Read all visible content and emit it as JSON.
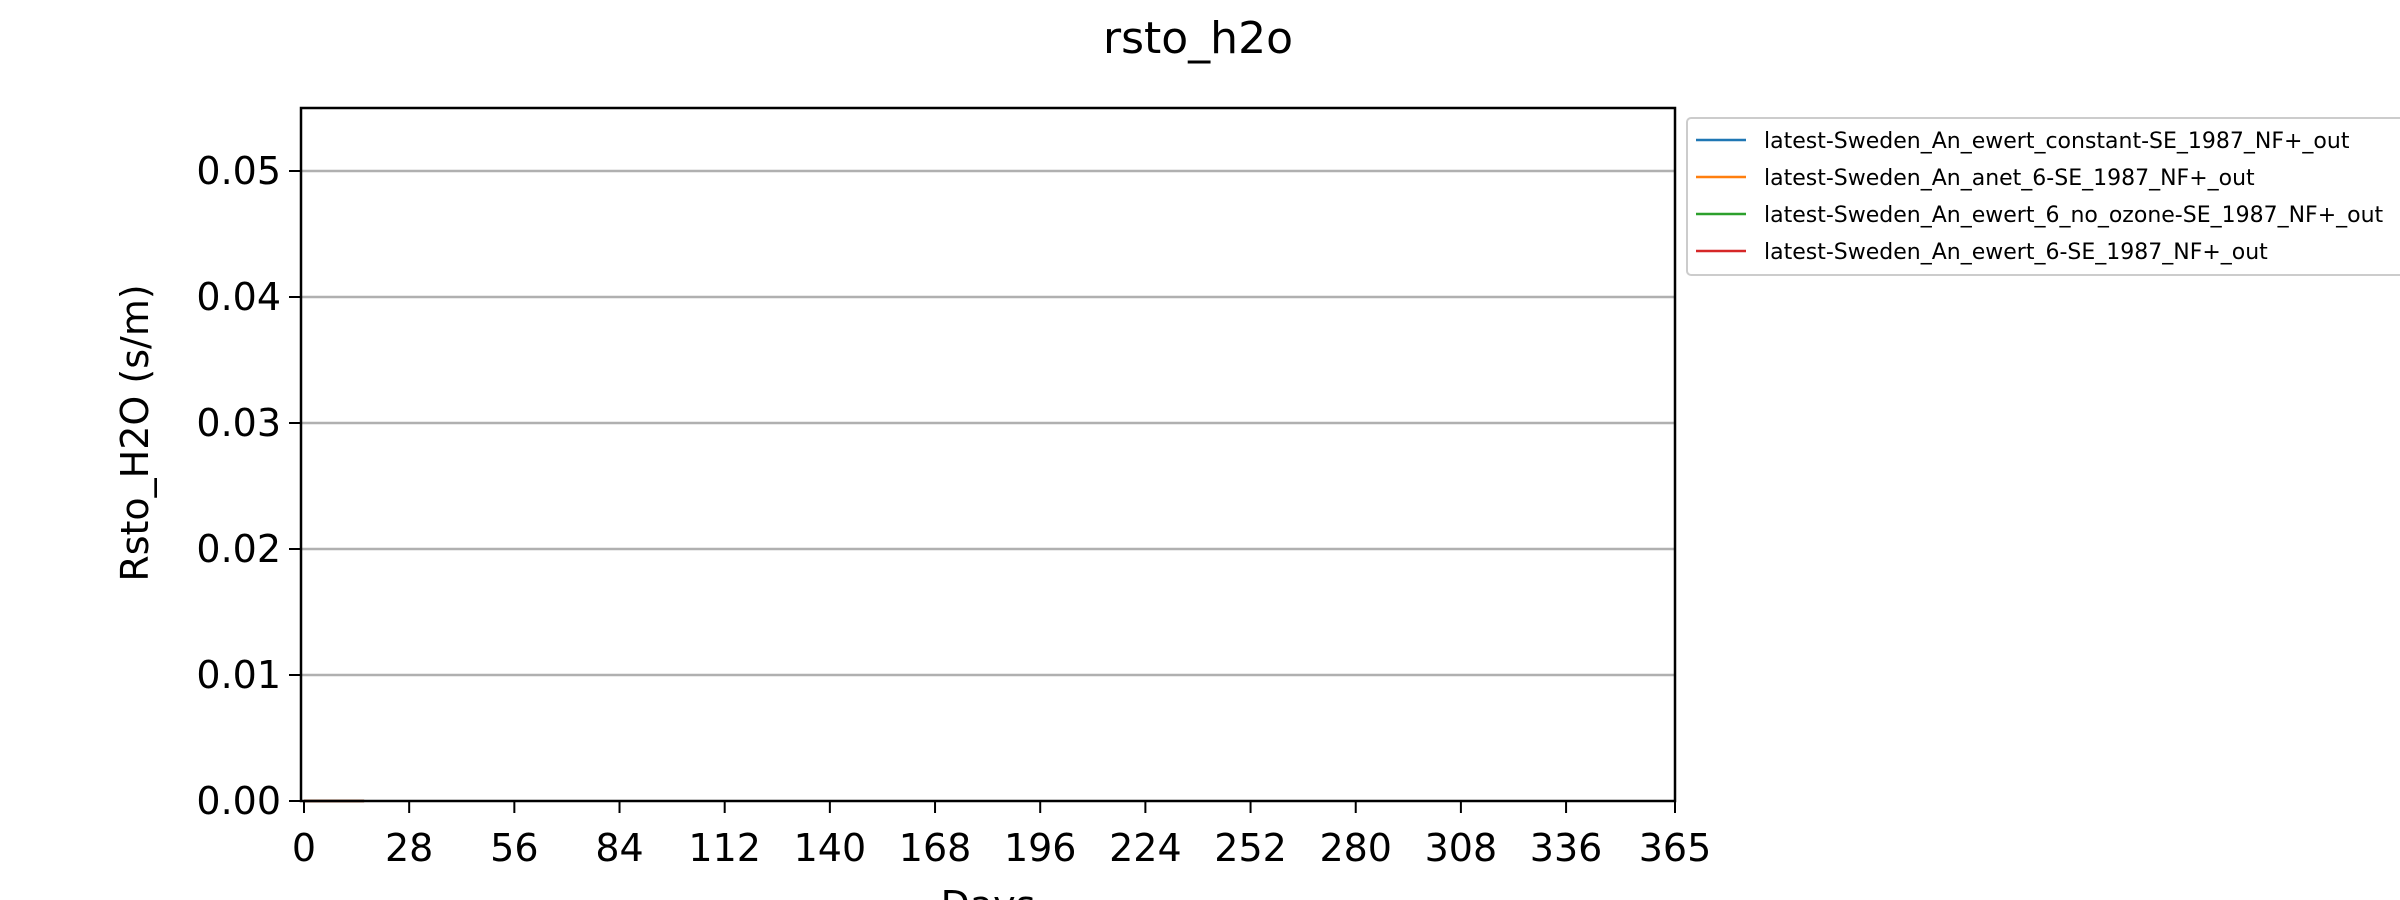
{
  "chart_data": {
    "type": "line",
    "title": "rsto_h2o",
    "xlabel": "Days",
    "ylabel": "Rsto_H2O (s/m)",
    "xlim": [
      0,
      365
    ],
    "ylim": [
      0,
      0.055
    ],
    "xticks": [
      0,
      28,
      56,
      84,
      112,
      140,
      168,
      196,
      224,
      252,
      280,
      308,
      336,
      365
    ],
    "xtick_labels": [
      "0",
      "28",
      "56",
      "84",
      "112",
      "140",
      "168",
      "196",
      "224",
      "252",
      "280",
      "308",
      "336",
      "365"
    ],
    "yticks": [
      0.0,
      0.01,
      0.02,
      0.03,
      0.04,
      0.05
    ],
    "ytick_labels": [
      "0.00",
      "0.01",
      "0.02",
      "0.03",
      "0.04",
      "0.05"
    ],
    "grid": "horizontal",
    "legend_position": "outside-top-right",
    "series": [
      {
        "name": "latest-Sweden_An_ewert_constant-SE_1987_NF+_out",
        "color": "#1f77b4",
        "x": [
          0,
          16
        ],
        "y": [
          0,
          0
        ]
      },
      {
        "name": "latest-Sweden_An_anet_6-SE_1987_NF+_out",
        "color": "#ff7f0e",
        "x": [
          0,
          16
        ],
        "y": [
          0,
          0
        ]
      },
      {
        "name": "latest-Sweden_An_ewert_6_no_ozone-SE_1987_NF+_out",
        "color": "#2ca02c",
        "x": [
          0,
          16
        ],
        "y": [
          0,
          0
        ]
      },
      {
        "name": "latest-Sweden_An_ewert_6-SE_1987_NF+_out",
        "color": "#d62728",
        "x": [
          0,
          16
        ],
        "y": [
          0,
          0
        ]
      }
    ]
  }
}
